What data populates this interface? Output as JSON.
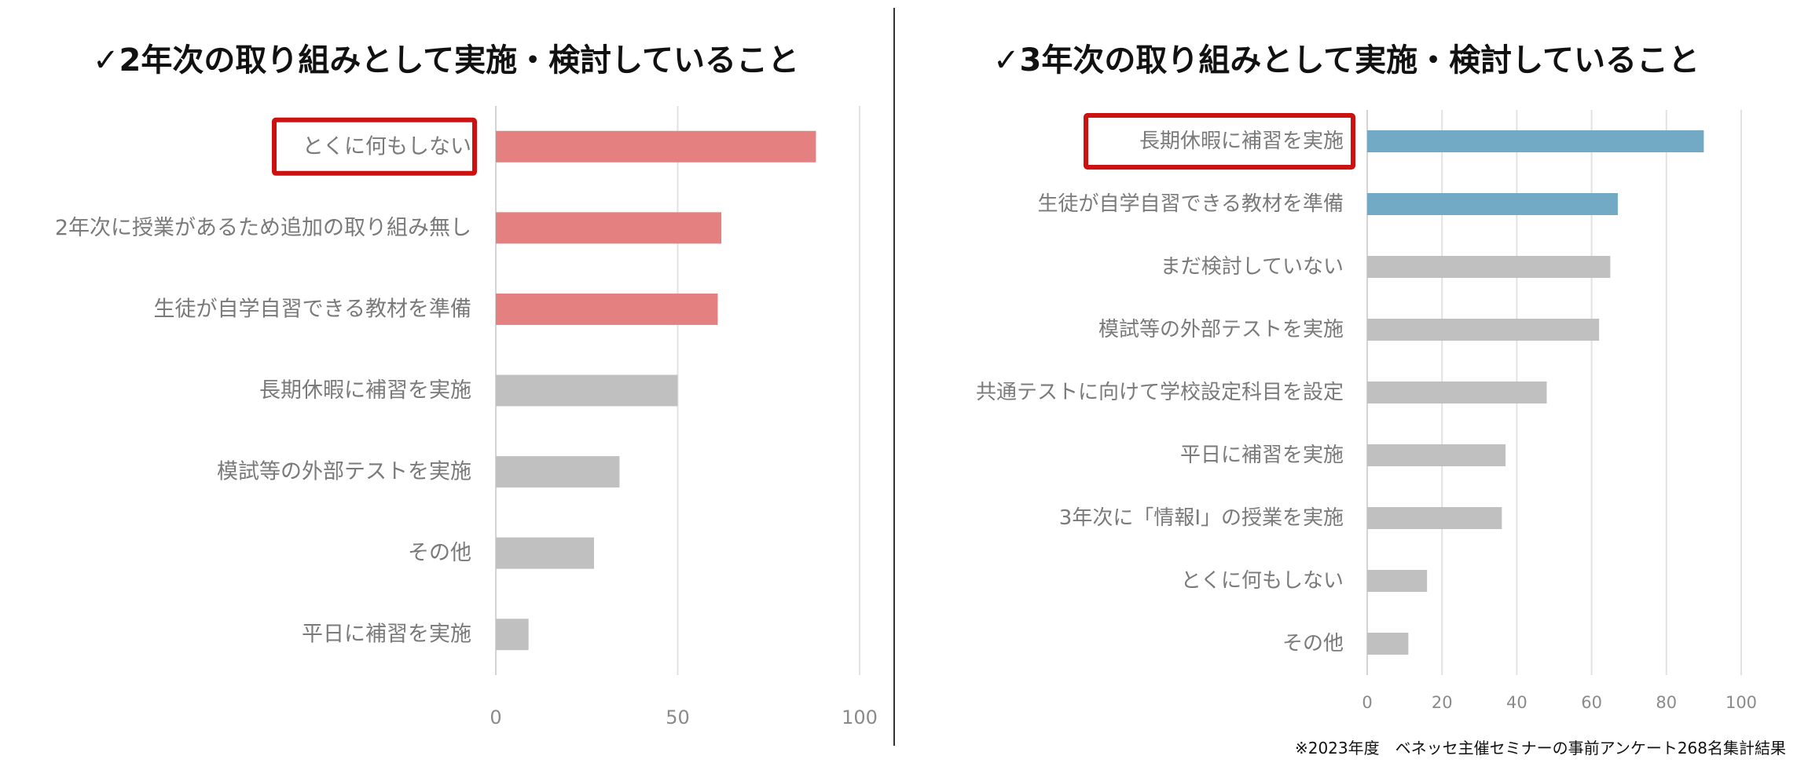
{
  "chart_data": [
    {
      "type": "bar",
      "orientation": "horizontal",
      "title": "✓2年次の取り組みとして実施・検討していること",
      "categories": [
        "とくに何もしない",
        "2年次に授業があるため追加の取り組み無し",
        "生徒が自学自習できる教材を準備",
        "長期休暇に補習を実施",
        "模試等の外部テストを実施",
        "その他",
        "平日に補習を実施"
      ],
      "values": [
        88,
        62,
        61,
        50,
        34,
        27,
        9
      ],
      "bar_colors": [
        "#e48080",
        "#e48080",
        "#e48080",
        "#c0c0c0",
        "#c0c0c0",
        "#c0c0c0",
        "#c0c0c0"
      ],
      "highlighted": "とくに何もしない",
      "highlight_color": "#cc1111",
      "xlim": [
        0,
        100
      ],
      "xticks": [
        "0",
        "50",
        "100"
      ],
      "xlabel": "",
      "ylabel": "",
      "grid": true
    },
    {
      "type": "bar",
      "orientation": "horizontal",
      "title": "✓3年次の取り組みとして実施・検討していること",
      "categories": [
        "長期休暇に補習を実施",
        "生徒が自学自習できる教材を準備",
        "まだ検討していない",
        "模試等の外部テストを実施",
        "共通テストに向けて学校設定科目を設定",
        "平日に補習を実施",
        "3年次に「情報Ⅰ」の授業を実施",
        "とくに何もしない",
        "その他"
      ],
      "values": [
        90,
        67,
        65,
        62,
        48,
        37,
        36,
        16,
        11
      ],
      "bar_colors": [
        "#72a9c5",
        "#72a9c5",
        "#c0c0c0",
        "#c0c0c0",
        "#c0c0c0",
        "#c0c0c0",
        "#c0c0c0",
        "#c0c0c0",
        "#c0c0c0"
      ],
      "highlighted": "長期休暇に補習を実施",
      "highlight_color": "#cc1111",
      "xlim": [
        0,
        100
      ],
      "xticks": [
        "0",
        "20",
        "40",
        "60",
        "80",
        "100"
      ],
      "xlabel": "",
      "ylabel": "",
      "grid": true
    }
  ],
  "footnote": "※2023年度　ベネッセ主催セミナーの事前アンケート268名集計結果"
}
